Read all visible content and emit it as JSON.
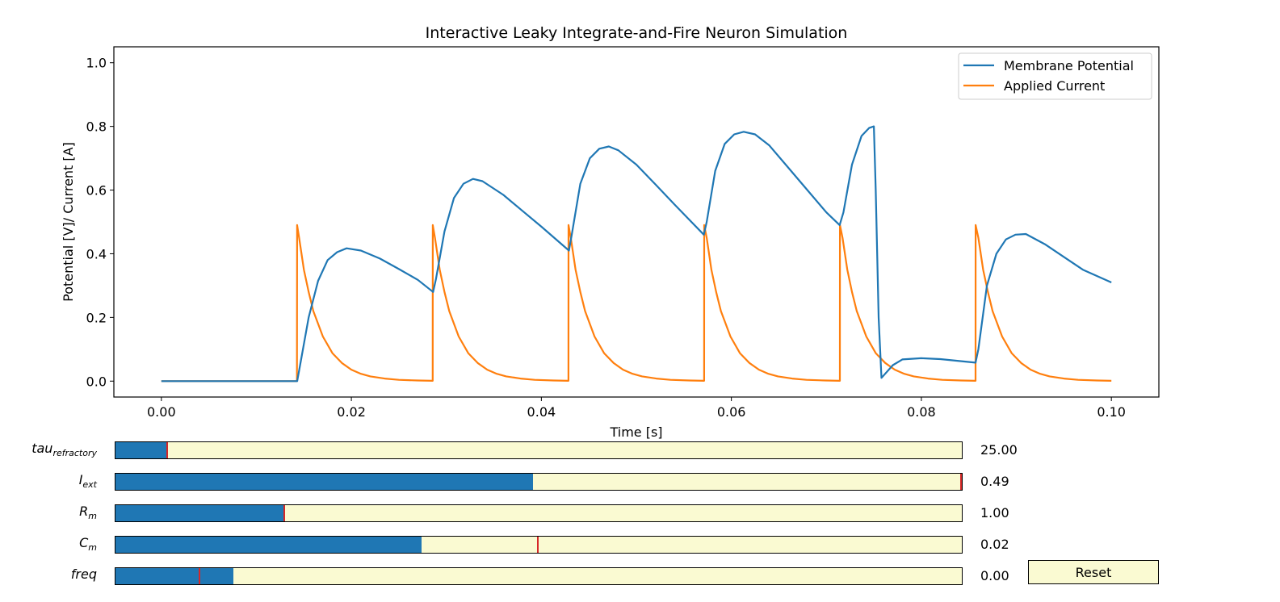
{
  "chart_data": {
    "type": "line",
    "title": "Interactive Leaky Integrate-and-Fire Neuron Simulation",
    "xlabel": "Time [s]",
    "ylabel": "Potential [V]/ Current [A]",
    "xlim": [
      -0.005,
      0.105
    ],
    "ylim": [
      -0.05,
      1.05
    ],
    "xticks": [
      0.0,
      0.02,
      0.04,
      0.06,
      0.08,
      0.1
    ],
    "xtick_labels": [
      "0.00",
      "0.02",
      "0.04",
      "0.06",
      "0.08",
      "0.10"
    ],
    "yticks": [
      0.0,
      0.2,
      0.4,
      0.6,
      0.8,
      1.0
    ],
    "ytick_labels": [
      "0.0",
      "0.2",
      "0.4",
      "0.6",
      "0.8",
      "1.0"
    ],
    "grid": false,
    "legend_position": "top-right",
    "series": [
      {
        "name": "Membrane Potential",
        "color": "#1f77b4",
        "x": [
          0.0,
          0.0143,
          0.0146,
          0.0155,
          0.0165,
          0.0175,
          0.0185,
          0.0195,
          0.021,
          0.023,
          0.025,
          0.027,
          0.0286,
          0.0289,
          0.0298,
          0.0308,
          0.0318,
          0.0328,
          0.0338,
          0.036,
          0.038,
          0.04,
          0.0429,
          0.0432,
          0.0441,
          0.0451,
          0.0461,
          0.0471,
          0.0481,
          0.05,
          0.052,
          0.054,
          0.0571,
          0.0574,
          0.0583,
          0.0593,
          0.0603,
          0.0613,
          0.0625,
          0.064,
          0.066,
          0.068,
          0.07,
          0.0714,
          0.0718,
          0.0727,
          0.0737,
          0.0745,
          0.075,
          0.0752,
          0.0755,
          0.0758,
          0.077,
          0.078,
          0.08,
          0.082,
          0.084,
          0.0857,
          0.086,
          0.0869,
          0.0879,
          0.0889,
          0.0899,
          0.091,
          0.093,
          0.095,
          0.097,
          0.1
        ],
        "y": [
          0.0,
          0.0,
          0.05,
          0.2,
          0.315,
          0.38,
          0.405,
          0.417,
          0.41,
          0.385,
          0.352,
          0.318,
          0.28,
          0.32,
          0.47,
          0.575,
          0.62,
          0.635,
          0.628,
          0.585,
          0.535,
          0.485,
          0.41,
          0.46,
          0.62,
          0.7,
          0.73,
          0.737,
          0.725,
          0.68,
          0.618,
          0.555,
          0.46,
          0.5,
          0.66,
          0.745,
          0.775,
          0.783,
          0.775,
          0.74,
          0.67,
          0.6,
          0.53,
          0.49,
          0.53,
          0.68,
          0.77,
          0.795,
          0.8,
          0.6,
          0.2,
          0.01,
          0.05,
          0.068,
          0.072,
          0.069,
          0.063,
          0.058,
          0.1,
          0.3,
          0.4,
          0.445,
          0.46,
          0.462,
          0.43,
          0.39,
          0.35,
          0.31
        ]
      },
      {
        "name": "Applied Current",
        "color": "#ff7f0e",
        "x": [
          0.0,
          0.01427,
          0.01429,
          0.0145,
          0.015,
          0.0155,
          0.016,
          0.017,
          0.018,
          0.019,
          0.02,
          0.021,
          0.022,
          0.0235,
          0.025,
          0.027,
          0.02856,
          0.02857,
          0.0288,
          0.0293,
          0.0298,
          0.0303,
          0.0313,
          0.0323,
          0.0333,
          0.0343,
          0.0353,
          0.0363,
          0.0378,
          0.0393,
          0.0413,
          0.04285,
          0.04286,
          0.0431,
          0.0436,
          0.0441,
          0.0446,
          0.0456,
          0.0466,
          0.0476,
          0.0486,
          0.0496,
          0.0506,
          0.0521,
          0.0536,
          0.0556,
          0.05713,
          0.05714,
          0.0574,
          0.0579,
          0.0584,
          0.0589,
          0.0599,
          0.0609,
          0.0619,
          0.0629,
          0.0639,
          0.0649,
          0.0664,
          0.0679,
          0.0699,
          0.07142,
          0.07143,
          0.0717,
          0.0722,
          0.0727,
          0.0732,
          0.0742,
          0.0752,
          0.0762,
          0.0772,
          0.0782,
          0.0792,
          0.0807,
          0.0822,
          0.0842,
          0.0857,
          0.08571,
          0.086,
          0.0865,
          0.087,
          0.0875,
          0.0885,
          0.0895,
          0.0905,
          0.0915,
          0.0925,
          0.0935,
          0.095,
          0.0965,
          0.0985,
          0.1
        ],
        "y": [
          0.0,
          0.0,
          0.49,
          0.45,
          0.35,
          0.28,
          0.22,
          0.14,
          0.088,
          0.057,
          0.036,
          0.023,
          0.015,
          0.008,
          0.004,
          0.002,
          0.001,
          0.49,
          0.45,
          0.35,
          0.28,
          0.22,
          0.14,
          0.088,
          0.057,
          0.036,
          0.023,
          0.015,
          0.008,
          0.004,
          0.002,
          0.001,
          0.49,
          0.45,
          0.35,
          0.28,
          0.22,
          0.14,
          0.088,
          0.057,
          0.036,
          0.023,
          0.015,
          0.008,
          0.004,
          0.002,
          0.001,
          0.49,
          0.45,
          0.35,
          0.28,
          0.22,
          0.14,
          0.088,
          0.057,
          0.036,
          0.023,
          0.015,
          0.008,
          0.004,
          0.002,
          0.001,
          0.49,
          0.45,
          0.35,
          0.28,
          0.22,
          0.14,
          0.088,
          0.057,
          0.036,
          0.023,
          0.015,
          0.008,
          0.004,
          0.002,
          0.001,
          0.49,
          0.45,
          0.35,
          0.28,
          0.22,
          0.14,
          0.088,
          0.057,
          0.036,
          0.023,
          0.015,
          0.008,
          0.004,
          0.002,
          0.001
        ]
      }
    ]
  },
  "sliders": [
    {
      "base": "tau",
      "sub": "refractory",
      "value_text": "25.00",
      "fill_fraction": 0.062,
      "initial_fraction": 0.062
    },
    {
      "base": "I",
      "sub": "ext",
      "value_text": "0.49",
      "fill_fraction": 0.493,
      "initial_fraction": 1.0
    },
    {
      "base": "R",
      "sub": "m",
      "value_text": "1.00",
      "fill_fraction": 0.2,
      "initial_fraction": 0.2
    },
    {
      "base": "C",
      "sub": "m",
      "value_text": "0.02",
      "fill_fraction": 0.362,
      "initial_fraction": 0.5
    },
    {
      "base": "freq",
      "sub": "",
      "value_text": "0.00",
      "fill_fraction": 0.139,
      "initial_fraction": 0.1
    }
  ],
  "reset_button": {
    "label": "Reset"
  },
  "colors": {
    "slider_fill": "#1f77b4",
    "slider_track": "#fafad2",
    "slider_initial_marker": "#d62728"
  }
}
